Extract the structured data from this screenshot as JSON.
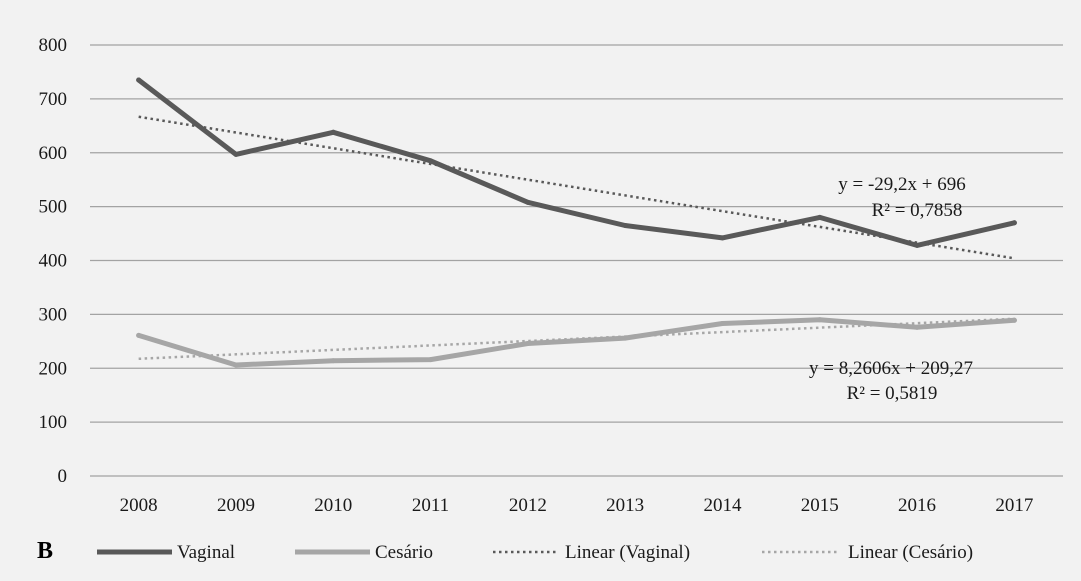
{
  "chart_data": {
    "type": "line",
    "panel_label": "B",
    "x": [
      "2008",
      "2009",
      "2010",
      "2011",
      "2012",
      "2013",
      "2014",
      "2015",
      "2016",
      "2017"
    ],
    "ylim": [
      0,
      800
    ],
    "yticks": [
      0,
      100,
      200,
      300,
      400,
      500,
      600,
      700,
      800
    ],
    "ytick_labels": [
      "0",
      "100",
      "200",
      "300",
      "400",
      "500",
      "600",
      "700",
      "800"
    ],
    "grid": true,
    "legend_position": "bottom",
    "series": [
      {
        "name": "Vaginal",
        "kind": "solid",
        "color": "#595959",
        "values": [
          735,
          597,
          638,
          585,
          508,
          465,
          442,
          480,
          428,
          470
        ]
      },
      {
        "name": "Cesário",
        "kind": "solid",
        "color": "#a6a6a6",
        "values": [
          261,
          206,
          214,
          216,
          246,
          256,
          283,
          290,
          276,
          289
        ]
      },
      {
        "name": "Linear (Vaginal)",
        "kind": "trend",
        "color": "#595959",
        "slope": -29.2,
        "intercept": 696
      },
      {
        "name": "Linear (Cesário)",
        "kind": "trend",
        "color": "#a6a6a6",
        "slope": 8.2606,
        "intercept": 209.27
      }
    ],
    "annotations": {
      "vaginal_equation": "y = -29,2x + 696",
      "vaginal_r2": "R² = 0,7858",
      "cesario_equation": "y = 8,2606x + 209,27",
      "cesario_r2": "R² = 0,5819"
    }
  }
}
